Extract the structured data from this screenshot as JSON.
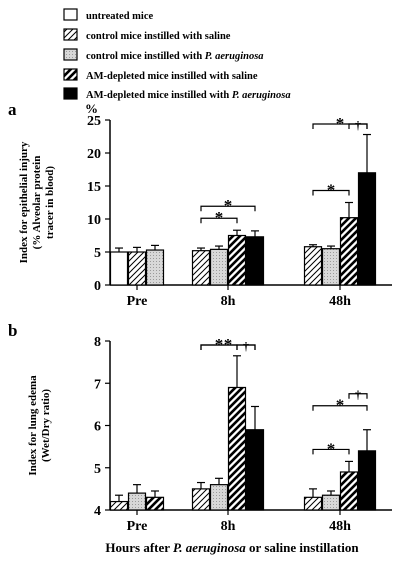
{
  "legend": {
    "items": [
      {
        "label": "untreated mice",
        "pattern": "white",
        "label_italic": ""
      },
      {
        "label": "control mice instilled with saline",
        "pattern": "hatch-light",
        "label_italic": ""
      },
      {
        "label": "control mice instilled with ",
        "pattern": "dotted",
        "label_italic": "P. aeruginosa"
      },
      {
        "label": "AM-depleted mice instilled with saline",
        "pattern": "hatch-heavy",
        "label_italic": ""
      },
      {
        "label": "AM-depleted mice instilled with ",
        "pattern": "black",
        "label_italic": "P. aeruginosa"
      }
    ]
  },
  "xaxis_title": {
    "prefix": "Hours after ",
    "italic": "P. aeruginosa",
    "suffix": " or saline instillation"
  },
  "chart_data": [
    {
      "type": "bar",
      "panel_label": "a",
      "unit_label": "%",
      "ylabel_lines": [
        "Index for epithelial injury",
        "(% Alveolar protein",
        "tracer in blood)"
      ],
      "ylim": [
        0,
        25
      ],
      "yticks": [
        0,
        5,
        10,
        15,
        20,
        25
      ],
      "categories": [
        "Pre",
        "8h",
        "48h"
      ],
      "series": [
        {
          "pattern": "white",
          "values": [
            5.0,
            null,
            null
          ],
          "errors": [
            0.6,
            null,
            null
          ]
        },
        {
          "pattern": "hatch-light",
          "values": [
            5.0,
            5.2,
            5.8
          ],
          "errors": [
            0.7,
            0.4,
            0.3
          ]
        },
        {
          "pattern": "dotted",
          "values": [
            5.3,
            5.4,
            5.5
          ],
          "errors": [
            0.7,
            0.5,
            0.4
          ]
        },
        {
          "pattern": "hatch-heavy",
          "values": [
            null,
            7.5,
            10.2
          ],
          "errors": [
            null,
            0.8,
            2.3
          ]
        },
        {
          "pattern": "black",
          "values": [
            null,
            7.3,
            17.0
          ],
          "errors": [
            null,
            0.9,
            5.8
          ]
        }
      ],
      "significance": [
        {
          "category": 1,
          "from": 1,
          "to": 3,
          "symbol": "*",
          "level": 0
        },
        {
          "category": 1,
          "from": 1,
          "to": 4,
          "symbol": "*",
          "level": 1
        },
        {
          "category": 2,
          "from": 1,
          "to": 3,
          "symbol": "*",
          "level": 0
        },
        {
          "category": 2,
          "from": 1,
          "to": 4,
          "symbol": "*",
          "level": 1
        },
        {
          "category": 2,
          "from": 3,
          "to": 4,
          "symbol": "†",
          "level": 2
        }
      ]
    },
    {
      "type": "bar",
      "panel_label": "b",
      "unit_label": "",
      "ylabel_lines": [
        "Index for lung edema",
        "(Wet/Dry ratio)"
      ],
      "ylim": [
        4,
        8
      ],
      "yticks": [
        4,
        5,
        6,
        7,
        8
      ],
      "categories": [
        "Pre",
        "8h",
        "48h"
      ],
      "series": [
        {
          "pattern": "white",
          "values": [
            null,
            null,
            null
          ],
          "errors": [
            null,
            null,
            null
          ]
        },
        {
          "pattern": "hatch-light",
          "values": [
            4.2,
            4.5,
            4.3
          ],
          "errors": [
            0.15,
            0.15,
            0.2
          ]
        },
        {
          "pattern": "dotted",
          "values": [
            4.4,
            4.6,
            4.35
          ],
          "errors": [
            0.2,
            0.15,
            0.1
          ]
        },
        {
          "pattern": "hatch-heavy",
          "values": [
            4.3,
            6.9,
            4.9
          ],
          "errors": [
            0.15,
            0.75,
            0.25
          ]
        },
        {
          "pattern": "black",
          "values": [
            null,
            5.9,
            5.4
          ],
          "errors": [
            null,
            0.55,
            0.5
          ]
        }
      ],
      "significance": [
        {
          "category": 1,
          "from": 1,
          "to": 3,
          "symbol": "*",
          "level": 0
        },
        {
          "category": 1,
          "from": 1,
          "to": 4,
          "symbol": "*",
          "level": 1
        },
        {
          "category": 1,
          "from": 3,
          "to": 4,
          "symbol": "†",
          "level": 2
        },
        {
          "category": 2,
          "from": 1,
          "to": 3,
          "symbol": "*",
          "level": 0
        },
        {
          "category": 2,
          "from": 1,
          "to": 4,
          "symbol": "*",
          "level": 1
        },
        {
          "category": 2,
          "from": 3,
          "to": 4,
          "symbol": "†",
          "level": 2
        }
      ]
    }
  ]
}
